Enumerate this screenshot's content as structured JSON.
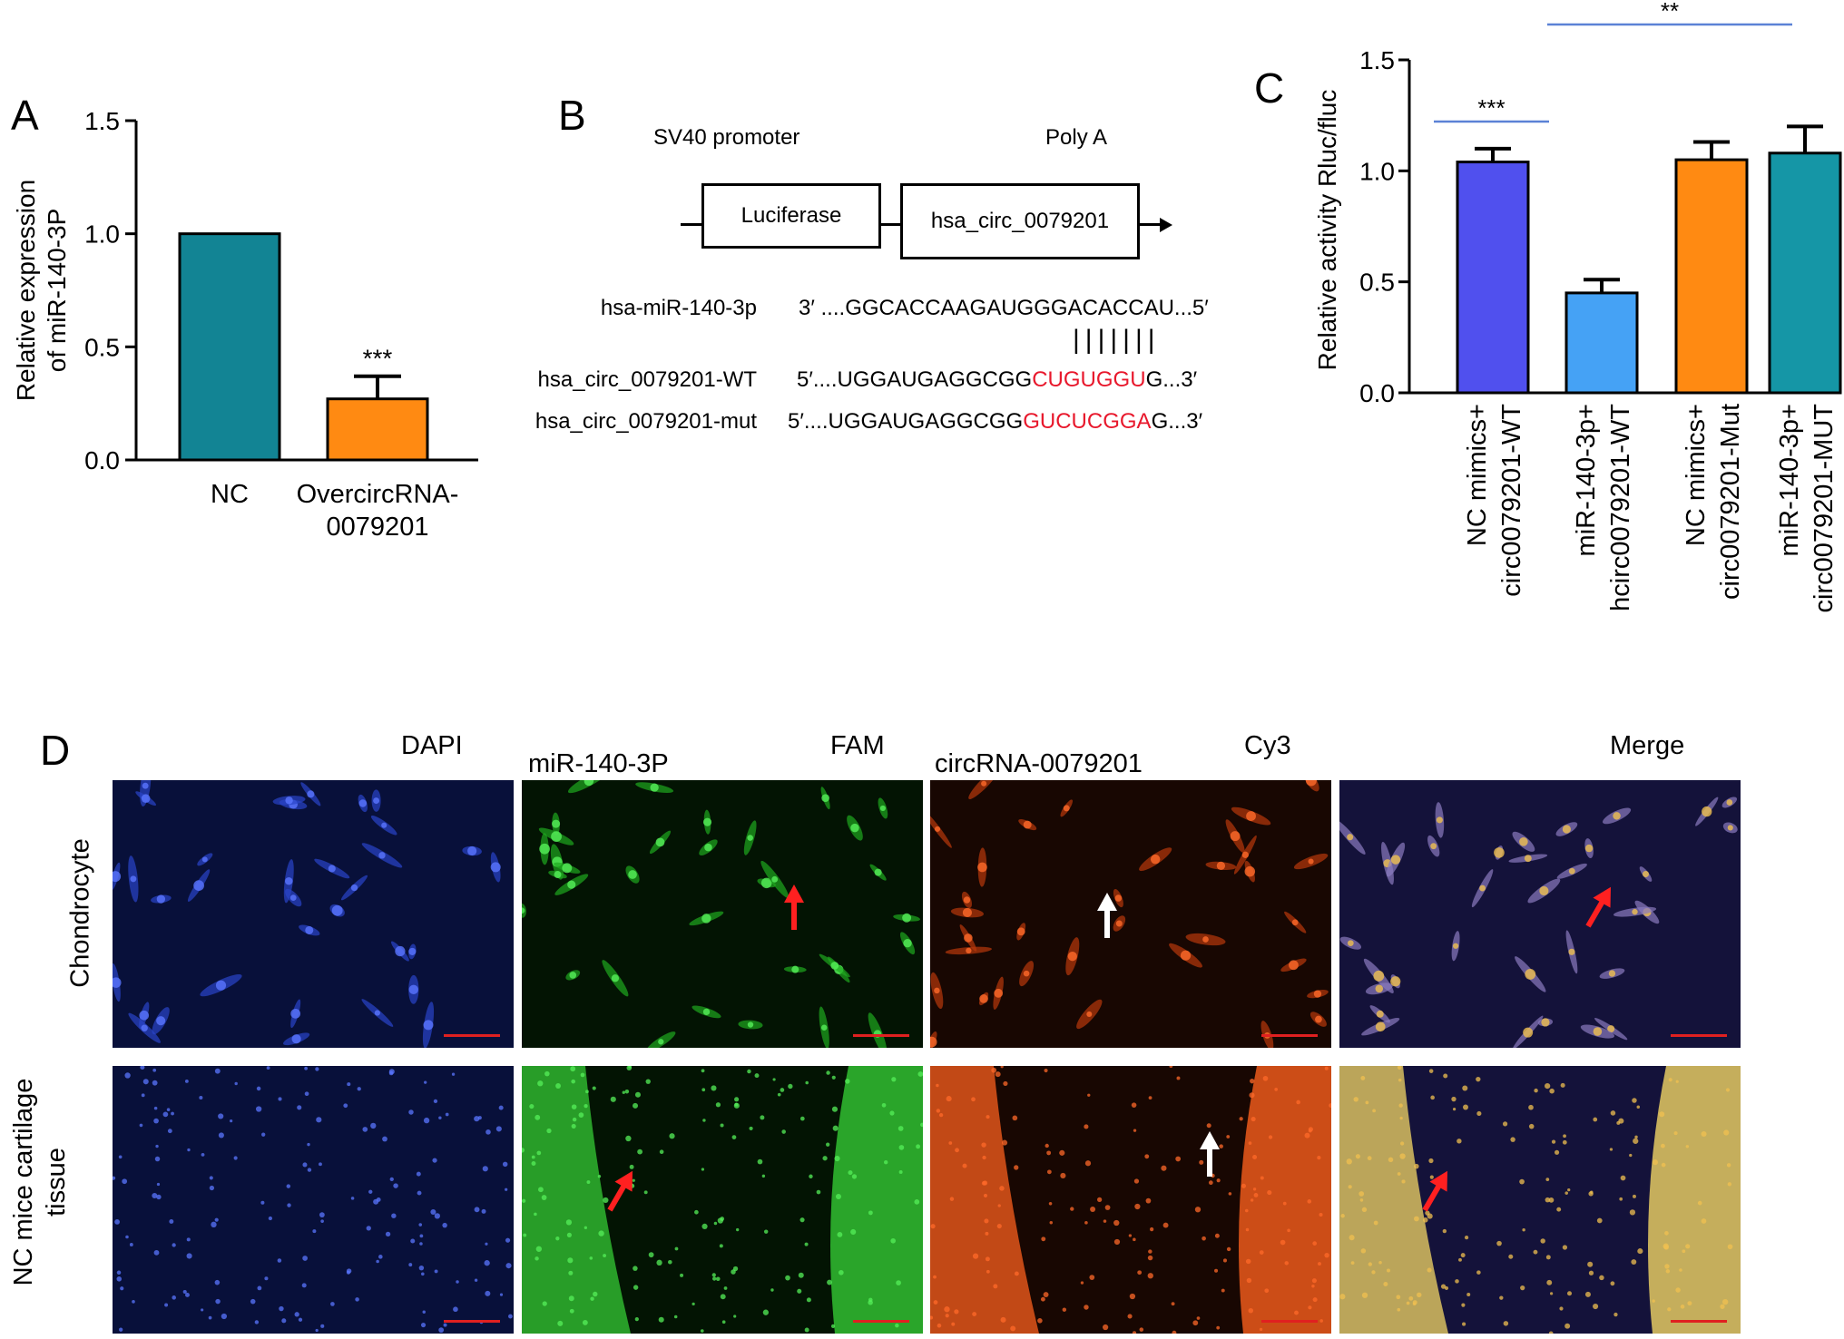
{
  "panels": {
    "a": {
      "letter": "A"
    },
    "b": {
      "letter": "B",
      "promoter_label": "SV40 promoter",
      "polya_label": "Poly A",
      "box1": "Luciferase",
      "box2": "hsa_circ_0079201",
      "rows": [
        {
          "name": "hsa-miR-140-3p",
          "prefix": "3′ ....GGCACCAAGAUGGGACACCAU...5′",
          "highlight": "",
          "suffix": ""
        },
        {
          "name": "hsa_circ_0079201-WT",
          "prefix": "5′....UGGAUGAGGCGG",
          "highlight": "CUGUGGU",
          "suffix": "G...3′"
        },
        {
          "name": "hsa_circ_0079201-mut",
          "prefix": "5′....UGGAUGAGGCGG",
          "highlight": "GUCUCGGA",
          "suffix": "G...3′"
        }
      ],
      "pairing": "|||||||"
    },
    "c": {
      "letter": "C"
    },
    "d": {
      "letter": "D",
      "headers": {
        "dapi": "DAPI",
        "mir": "miR-140-3P",
        "fam": "FAM",
        "circ": "circRNA-0079201",
        "cy3": "Cy3",
        "merge": "Merge"
      },
      "rows": [
        "Chondrocyte",
        "NC mice cartilage\ntissue"
      ]
    }
  },
  "chart_data": [
    {
      "type": "bar",
      "panel": "A",
      "categories": [
        "NC",
        "OvercircRNA-\n0079201"
      ],
      "values": [
        1.0,
        0.27
      ],
      "errors": [
        0,
        0.1
      ],
      "ylabel": "Relative expression\nof miR-140-3P",
      "ylim": [
        0,
        1.5
      ],
      "yticks": [
        "0.0",
        "0.5",
        "1.0",
        "1.5"
      ],
      "colors": [
        "#128494",
        "#ff8a12"
      ],
      "annotations": [
        {
          "category": 1,
          "text": "***"
        }
      ]
    },
    {
      "type": "bar",
      "panel": "C",
      "categories": [
        "NC mimics+\ncirc0079201-WT",
        "miR-140-3p+\nhcirc0079201-WT",
        "NC mimics+\ncirc0079201-Mut",
        "miR-140-3p+\ncirc0079201-MUT"
      ],
      "values": [
        1.04,
        0.45,
        1.05,
        1.08
      ],
      "errors": [
        0.06,
        0.06,
        0.08,
        0.12
      ],
      "ylabel": "Relative activity Rluc/fluc",
      "ylim": [
        0,
        1.5
      ],
      "yticks": [
        "0.0",
        "0.5",
        "1.0",
        "1.5"
      ],
      "colors": [
        "#5050ee",
        "#45a2f5",
        "#ff8a12",
        "#1596a6"
      ],
      "significance": [
        {
          "from": 0,
          "to": 1,
          "text": "***",
          "color": "#5b82d6"
        },
        {
          "from": 1,
          "to": 3,
          "text": "**",
          "color": "#5b82d6"
        }
      ]
    }
  ]
}
